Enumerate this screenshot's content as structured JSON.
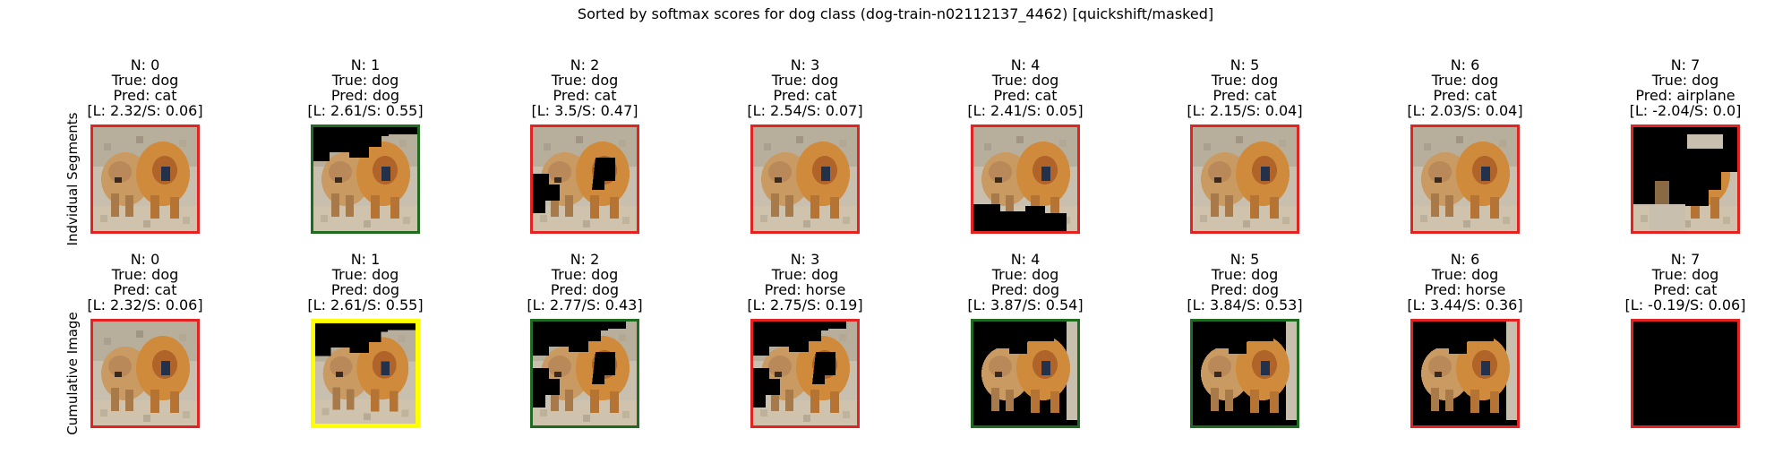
{
  "title": "Sorted by softmax scores for dog class (dog-train-n02112137_4462) [quickshift/masked]",
  "rows": [
    {
      "label": "Indvidual Segments",
      "panels": [
        {
          "n": "N: 0",
          "true": "True: dog",
          "pred": "Pred: cat",
          "scores": "[L: 2.32/S: 0.06]",
          "border": "#e32222",
          "mask": "full"
        },
        {
          "n": "N: 1",
          "true": "True: dog",
          "pred": "Pred: dog",
          "scores": "[L: 2.61/S: 0.55]",
          "border": "#1f6b1f",
          "mask": "top-black"
        },
        {
          "n": "N: 2",
          "true": "True: dog",
          "pred": "Pred: cat",
          "scores": "[L: 3.5/S: 0.47]",
          "border": "#e32222",
          "mask": "left-black"
        },
        {
          "n": "N: 3",
          "true": "True: dog",
          "pred": "Pred: cat",
          "scores": "[L: 2.54/S: 0.07]",
          "border": "#e32222",
          "mask": "full"
        },
        {
          "n": "N: 4",
          "true": "True: dog",
          "pred": "Pred: cat",
          "scores": "[L: 2.41/S: 0.05]",
          "border": "#e32222",
          "mask": "bottom-black"
        },
        {
          "n": "N: 5",
          "true": "True: dog",
          "pred": "Pred: cat",
          "scores": "[L: 2.15/S: 0.04]",
          "border": "#e32222",
          "mask": "full"
        },
        {
          "n": "N: 6",
          "true": "True: dog",
          "pred": "Pred: cat",
          "scores": "[L: 2.03/S: 0.04]",
          "border": "#e32222",
          "mask": "full"
        },
        {
          "n": "N: 7",
          "true": "True: dog",
          "pred": "Pred: airplane",
          "scores": "[L: -2.04/S: 0.0]",
          "border": "#e32222",
          "mask": "mostly-black"
        }
      ]
    },
    {
      "label": "Cumulative Image",
      "panels": [
        {
          "n": "N: 0",
          "true": "True: dog",
          "pred": "Pred: cat",
          "scores": "[L: 2.32/S: 0.06]",
          "border": "#e32222",
          "mask": "full"
        },
        {
          "n": "N: 1",
          "true": "True: dog",
          "pred": "Pred: dog",
          "scores": "[L: 2.61/S: 0.55]",
          "border": "#ffff00",
          "mask": "top-black"
        },
        {
          "n": "N: 2",
          "true": "True: dog",
          "pred": "Pred: dog",
          "scores": "[L: 2.77/S: 0.43]",
          "border": "#1f6b1f",
          "mask": "top-left-black"
        },
        {
          "n": "N: 3",
          "true": "True: dog",
          "pred": "Pred: horse",
          "scores": "[L: 2.75/S: 0.19]",
          "border": "#e32222",
          "mask": "top-left-black"
        },
        {
          "n": "N: 4",
          "true": "True: dog",
          "pred": "Pred: dog",
          "scores": "[L: 3.87/S: 0.54]",
          "border": "#1f6b1f",
          "mask": "dogs-only"
        },
        {
          "n": "N: 5",
          "true": "True: dog",
          "pred": "Pred: dog",
          "scores": "[L: 3.84/S: 0.53]",
          "border": "#1f6b1f",
          "mask": "dogs-only"
        },
        {
          "n": "N: 6",
          "true": "True: dog",
          "pred": "Pred: horse",
          "scores": "[L: 3.44/S: 0.36]",
          "border": "#e32222",
          "mask": "dogs-only"
        },
        {
          "n": "N: 7",
          "true": "True: dog",
          "pred": "Pred: cat",
          "scores": "[L: -0.19/S: 0.06]",
          "border": "#e32222",
          "mask": "black"
        }
      ]
    }
  ]
}
